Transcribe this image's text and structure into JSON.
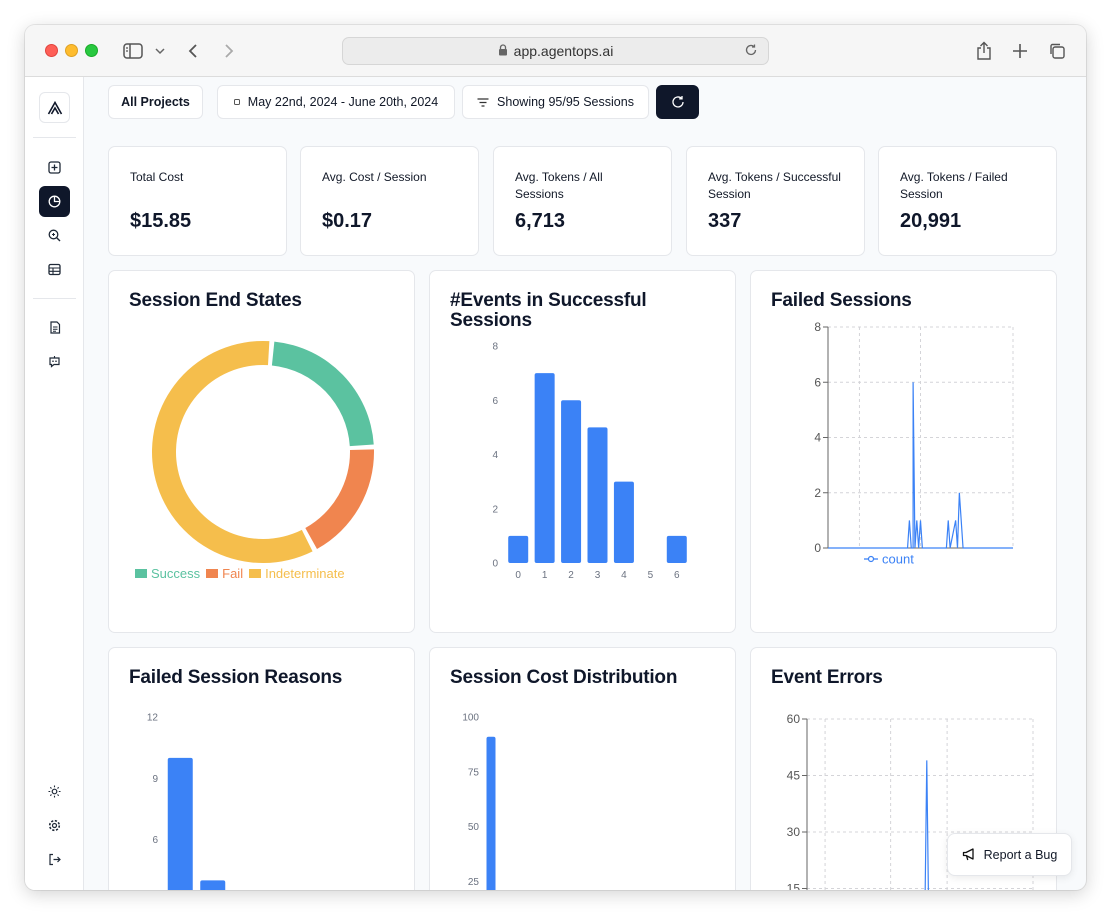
{
  "browser": {
    "url": "app.agentops.ai"
  },
  "toolbar": {
    "projects_label": "All Projects",
    "date_range": "May 22nd, 2024 - June 20th, 2024",
    "sessions_filter": "Showing 95/95 Sessions"
  },
  "stats": [
    {
      "label": "Total Cost",
      "value": "$15.85"
    },
    {
      "label": "Avg. Cost / Session",
      "value": "$0.17"
    },
    {
      "label": "Avg. Tokens / All Sessions",
      "value": "6,713"
    },
    {
      "label": "Avg. Tokens / Successful Session",
      "value": "337"
    },
    {
      "label": "Avg. Tokens / Failed Session",
      "value": "20,991"
    }
  ],
  "report_bug_label": "Report a Bug",
  "icons": {
    "sidebar": [
      "logo-icon",
      "new-session-icon",
      "dashboard-icon",
      "search-icon",
      "table-icon",
      "document-icon",
      "chat-bot-icon",
      "theme-sun-icon",
      "settings-icon",
      "logout-icon"
    ]
  },
  "colors": {
    "success": "#5bc2a0",
    "fail": "#f0854f",
    "indeterminate": "#f5be4c",
    "bar": "#3b82f6",
    "active_nav": "#0f172a"
  },
  "chart_data": [
    {
      "type": "pie",
      "title": "Session End States",
      "variant": "donut",
      "categories": [
        "Success",
        "Fail",
        "Indeterminate"
      ],
      "values": [
        23,
        18,
        59
      ],
      "legend": "bottom"
    },
    {
      "type": "bar",
      "title": "#Events in Successful Sessions",
      "categories": [
        "0",
        "1",
        "2",
        "3",
        "4",
        "5",
        "6"
      ],
      "values": [
        1,
        7,
        6,
        5,
        3,
        0,
        1
      ],
      "ylim": [
        0,
        8
      ],
      "yticks": [
        "0",
        "2",
        "4",
        "6",
        "8"
      ]
    },
    {
      "type": "line",
      "title": "Failed Sessions",
      "series": [
        {
          "name": "count",
          "x_fraction": [
            0.0,
            0.43,
            0.44,
            0.45,
            0.46,
            0.46,
            0.47,
            0.48,
            0.49,
            0.5,
            0.51,
            0.52,
            0.53,
            0.64,
            0.65,
            0.66,
            0.69,
            0.7,
            0.71,
            0.73,
            0.74,
            0.75,
            1.0
          ],
          "values": [
            0,
            0,
            1,
            0,
            0,
            6,
            0,
            1,
            0,
            1,
            0,
            0,
            0,
            0,
            1,
            0,
            1,
            0,
            2,
            0,
            0,
            0,
            0
          ]
        }
      ],
      "ylim": [
        0,
        8
      ],
      "yticks": [
        "0",
        "2",
        "4",
        "6",
        "8"
      ],
      "grid": true,
      "legend": "bottom-left"
    },
    {
      "type": "bar",
      "title": "Failed Session Reasons",
      "categories": [
        "",
        ""
      ],
      "values": [
        10,
        4
      ],
      "ylim": [
        0,
        12
      ],
      "yticks": [
        "3",
        "6",
        "9",
        "12"
      ]
    },
    {
      "type": "bar",
      "title": "Session Cost Distribution",
      "categories": [
        ""
      ],
      "values": [
        91
      ],
      "ylim": [
        0,
        100
      ],
      "yticks": [
        "25",
        "50",
        "75",
        "100"
      ]
    },
    {
      "type": "line",
      "title": "Event Errors",
      "series": [
        {
          "name": "",
          "x_fraction": [
            0.0,
            0.52,
            0.53,
            0.54,
            1.0
          ],
          "values": [
            0,
            0,
            49,
            0,
            0
          ]
        }
      ],
      "ylim": [
        0,
        60
      ],
      "yticks": [
        "15",
        "30",
        "45",
        "60"
      ],
      "grid": true
    }
  ]
}
